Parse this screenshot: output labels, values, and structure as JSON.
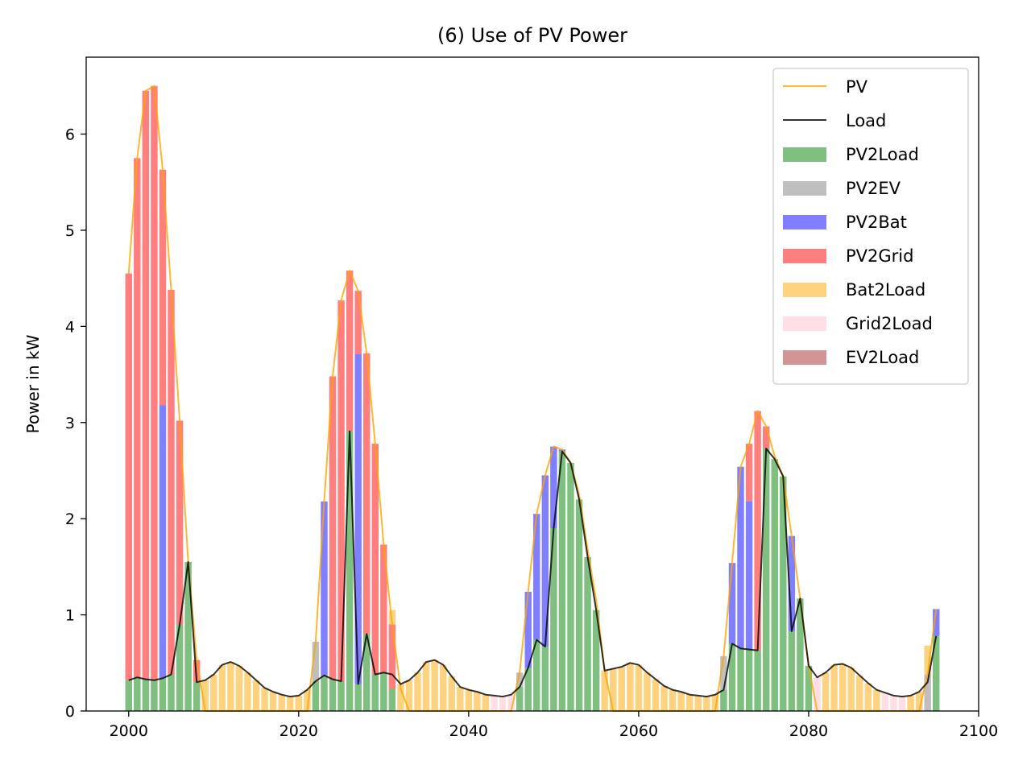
{
  "chart_data": {
    "type": "bar",
    "title": "(6) Use of PV Power",
    "xlabel": "",
    "ylabel": "Power in kW",
    "xlim": [
      1995,
      2100
    ],
    "ylim": [
      0,
      6.8
    ],
    "xticks": [
      2000,
      2020,
      2040,
      2060,
      2080,
      2100
    ],
    "yticks": [
      0,
      1,
      2,
      3,
      4,
      5,
      6
    ],
    "legend_position": "top-right",
    "x": [
      2000,
      2001,
      2002,
      2003,
      2004,
      2005,
      2006,
      2007,
      2008,
      2009,
      2010,
      2011,
      2012,
      2013,
      2014,
      2015,
      2016,
      2017,
      2018,
      2019,
      2020,
      2021,
      2022,
      2023,
      2024,
      2025,
      2026,
      2027,
      2028,
      2029,
      2030,
      2031,
      2032,
      2033,
      2034,
      2035,
      2036,
      2037,
      2038,
      2039,
      2040,
      2041,
      2042,
      2043,
      2044,
      2045,
      2046,
      2047,
      2048,
      2049,
      2050,
      2051,
      2052,
      2053,
      2054,
      2055,
      2056,
      2057,
      2058,
      2059,
      2060,
      2061,
      2062,
      2063,
      2064,
      2065,
      2066,
      2067,
      2068,
      2069,
      2070,
      2071,
      2072,
      2073,
      2074,
      2075,
      2076,
      2077,
      2078,
      2079,
      2080,
      2081,
      2082,
      2083,
      2084,
      2085,
      2086,
      2087,
      2088,
      2089,
      2090,
      2091,
      2092,
      2093,
      2094,
      2095
    ],
    "series": [
      {
        "name": "PV",
        "kind": "line",
        "color": "#FFA500",
        "values": [
          4.55,
          5.75,
          6.45,
          6.5,
          5.63,
          4.38,
          3.02,
          1.55,
          0.53,
          0,
          0,
          0,
          0,
          0,
          0,
          0,
          0,
          0,
          0,
          0,
          0,
          0,
          0.72,
          2.18,
          3.48,
          4.27,
          4.58,
          4.37,
          3.72,
          2.78,
          1.73,
          0.9,
          0.23,
          0,
          0,
          0,
          0,
          0,
          0,
          0,
          0,
          0,
          0,
          0,
          0,
          0,
          0.4,
          1.24,
          2.05,
          2.45,
          2.75,
          2.72,
          2.58,
          2.25,
          1.68,
          1.15,
          0.42,
          0,
          0,
          0,
          0,
          0,
          0,
          0,
          0,
          0,
          0,
          0,
          0,
          0,
          0.57,
          1.54,
          2.54,
          2.78,
          3.12,
          2.96,
          2.65,
          2.44,
          1.82,
          1.17,
          0.47,
          0,
          0,
          0,
          0,
          0,
          0,
          0,
          0,
          0,
          0,
          0,
          0,
          0,
          0.38,
          1.06
        ]
      },
      {
        "name": "Load",
        "kind": "line",
        "color": "#000000",
        "values": [
          0.32,
          0.35,
          0.33,
          0.32,
          0.34,
          0.38,
          0.9,
          1.55,
          0.3,
          0.32,
          0.38,
          0.48,
          0.51,
          0.47,
          0.4,
          0.32,
          0.24,
          0.2,
          0.17,
          0.15,
          0.16,
          0.22,
          0.31,
          0.37,
          0.33,
          0.31,
          2.91,
          0.28,
          0.8,
          0.38,
          0.4,
          0.38,
          0.28,
          0.32,
          0.4,
          0.51,
          0.53,
          0.48,
          0.36,
          0.25,
          0.22,
          0.2,
          0.17,
          0.16,
          0.15,
          0.17,
          0.25,
          0.45,
          0.74,
          0.67,
          1.9,
          2.7,
          2.58,
          2.2,
          1.6,
          1.05,
          0.42,
          0.44,
          0.46,
          0.5,
          0.48,
          0.4,
          0.33,
          0.26,
          0.22,
          0.2,
          0.17,
          0.16,
          0.15,
          0.17,
          0.22,
          0.7,
          0.65,
          0.64,
          0.63,
          2.73,
          2.62,
          2.44,
          0.83,
          1.17,
          0.47,
          0.35,
          0.4,
          0.48,
          0.49,
          0.45,
          0.37,
          0.29,
          0.22,
          0.19,
          0.16,
          0.15,
          0.16,
          0.2,
          0.3,
          0.78
        ]
      },
      {
        "name": "PV2Load",
        "kind": "bar",
        "color": "#008000",
        "alpha": 0.5,
        "values": [
          0.32,
          0.35,
          0.33,
          0.32,
          0.34,
          0.38,
          0.9,
          1.55,
          0.3,
          0,
          0,
          0,
          0,
          0,
          0,
          0,
          0,
          0,
          0,
          0,
          0,
          0,
          0.31,
          0.37,
          0.33,
          0.31,
          2.91,
          0.28,
          0.8,
          0.38,
          0.4,
          0.23,
          0,
          0,
          0,
          0,
          0,
          0,
          0,
          0,
          0,
          0,
          0,
          0,
          0,
          0,
          0.25,
          0.45,
          0.74,
          0.67,
          1.9,
          2.7,
          2.58,
          2.2,
          1.6,
          1.05,
          0,
          0,
          0,
          0,
          0,
          0,
          0,
          0,
          0,
          0,
          0,
          0,
          0,
          0,
          0.22,
          0.7,
          0.65,
          0.64,
          0.63,
          2.73,
          2.62,
          2.44,
          0.83,
          1.17,
          0.47,
          0,
          0,
          0,
          0,
          0,
          0,
          0,
          0,
          0,
          0,
          0,
          0,
          0,
          0,
          0.78
        ]
      },
      {
        "name": "PV2EV",
        "kind": "bar",
        "color": "#808080",
        "alpha": 0.5,
        "values": [
          0,
          0,
          0,
          0,
          0,
          0,
          0,
          0,
          0,
          0,
          0,
          0,
          0,
          0,
          0,
          0,
          0,
          0,
          0,
          0,
          0,
          0,
          0.41,
          0,
          0,
          0,
          0,
          0,
          0,
          0,
          0,
          0,
          0,
          0,
          0,
          0,
          0,
          0,
          0,
          0,
          0,
          0,
          0,
          0,
          0,
          0,
          0.15,
          0,
          0,
          0,
          0,
          0,
          0,
          0,
          0,
          0,
          0,
          0,
          0,
          0,
          0,
          0,
          0,
          0,
          0,
          0,
          0,
          0,
          0,
          0,
          0.35,
          0,
          0,
          0,
          0,
          0,
          0,
          0,
          0,
          0,
          0,
          0,
          0,
          0,
          0,
          0,
          0,
          0,
          0,
          0,
          0,
          0,
          0,
          0,
          0.38,
          0
        ]
      },
      {
        "name": "PV2Bat",
        "kind": "bar",
        "color": "#0000FF",
        "alpha": 0.5,
        "values": [
          0,
          0,
          0,
          0,
          2.84,
          0,
          0,
          0,
          0,
          0,
          0,
          0,
          0,
          0,
          0,
          0,
          0,
          0,
          0,
          0,
          0,
          0,
          0,
          1.81,
          0,
          0,
          0,
          3.43,
          0,
          0,
          0,
          0,
          0,
          0,
          0,
          0,
          0,
          0,
          0,
          0,
          0,
          0,
          0,
          0,
          0,
          0,
          0,
          0.79,
          1.31,
          1.78,
          0.85,
          0.02,
          0,
          0,
          0,
          0,
          0,
          0,
          0,
          0,
          0,
          0,
          0,
          0,
          0,
          0,
          0,
          0,
          0,
          0,
          0,
          0.84,
          1.89,
          1.54,
          0,
          0,
          0,
          0,
          0.99,
          0,
          0,
          0,
          0,
          0,
          0,
          0,
          0,
          0,
          0,
          0,
          0,
          0,
          0,
          0,
          0,
          0.28
        ]
      },
      {
        "name": "PV2Grid",
        "kind": "bar",
        "color": "#FF0000",
        "alpha": 0.5,
        "values": [
          4.23,
          5.4,
          6.12,
          6.18,
          2.45,
          4.0,
          2.12,
          0,
          0.23,
          0,
          0,
          0,
          0,
          0,
          0,
          0,
          0,
          0,
          0,
          0,
          0,
          0,
          0,
          0,
          3.15,
          3.96,
          1.67,
          0.66,
          2.92,
          2.4,
          1.33,
          0.67,
          0,
          0,
          0,
          0,
          0,
          0,
          0,
          0,
          0,
          0,
          0,
          0,
          0,
          0,
          0,
          0,
          0,
          0,
          0,
          0,
          0,
          0,
          0,
          0,
          0,
          0,
          0,
          0,
          0,
          0,
          0,
          0,
          0,
          0,
          0,
          0,
          0,
          0,
          0,
          0,
          0,
          0.6,
          2.49,
          0.23,
          0,
          0,
          0,
          0,
          0,
          0,
          0,
          0,
          0,
          0,
          0,
          0,
          0,
          0,
          0,
          0,
          0,
          0,
          0,
          0
        ]
      },
      {
        "name": "Bat2Load",
        "kind": "bar",
        "color": "#FFA500",
        "alpha": 0.5,
        "values": [
          0,
          0,
          0,
          0,
          0,
          0,
          0,
          0,
          0,
          0.32,
          0.38,
          0.48,
          0.51,
          0.47,
          0.4,
          0.32,
          0.24,
          0.2,
          0.17,
          0.15,
          0.16,
          0.22,
          0,
          0,
          0,
          0,
          0,
          0,
          0,
          0,
          0,
          0.15,
          0.28,
          0.32,
          0.4,
          0.51,
          0.53,
          0.48,
          0.36,
          0.25,
          0.22,
          0.2,
          0.17,
          0,
          0,
          0,
          0,
          0,
          0,
          0,
          0,
          0,
          0,
          0,
          0,
          0,
          0.42,
          0.44,
          0.46,
          0.5,
          0.48,
          0.4,
          0.33,
          0.26,
          0.22,
          0.2,
          0.17,
          0.16,
          0.15,
          0.17,
          0,
          0,
          0,
          0,
          0,
          0,
          0,
          0,
          0,
          0,
          0,
          0,
          0.4,
          0.48,
          0.49,
          0.45,
          0.37,
          0.29,
          0.22,
          0,
          0,
          0,
          0.16,
          0.2,
          0.3,
          0
        ]
      },
      {
        "name": "Grid2Load",
        "kind": "bar",
        "color": "#FFC0CB",
        "alpha": 0.5,
        "values": [
          0,
          0,
          0,
          0,
          0,
          0,
          0,
          0,
          0,
          0,
          0,
          0,
          0,
          0,
          0,
          0,
          0,
          0,
          0,
          0,
          0,
          0,
          0,
          0,
          0,
          0,
          0,
          0,
          0,
          0,
          0,
          0,
          0,
          0,
          0,
          0,
          0,
          0,
          0,
          0,
          0,
          0,
          0,
          0.16,
          0.15,
          0.17,
          0,
          0,
          0,
          0,
          0,
          0,
          0,
          0,
          0,
          0,
          0,
          0,
          0,
          0,
          0,
          0,
          0,
          0,
          0,
          0,
          0,
          0,
          0,
          0,
          0,
          0,
          0,
          0,
          0,
          0,
          0,
          0,
          0,
          0,
          0,
          0.35,
          0,
          0,
          0,
          0,
          0,
          0,
          0,
          0.19,
          0.16,
          0.15,
          0,
          0,
          0,
          0
        ]
      },
      {
        "name": "EV2Load",
        "kind": "bar",
        "color": "#A52A2A",
        "alpha": 0.5,
        "values": [
          0,
          0,
          0,
          0,
          0,
          0,
          0,
          0,
          0,
          0,
          0,
          0,
          0,
          0,
          0,
          0,
          0,
          0,
          0,
          0,
          0,
          0,
          0,
          0,
          0,
          0,
          0,
          0,
          0,
          0,
          0,
          0,
          0,
          0,
          0,
          0,
          0,
          0,
          0,
          0,
          0,
          0,
          0,
          0,
          0,
          0,
          0,
          0,
          0,
          0,
          0,
          0,
          0,
          0,
          0,
          0,
          0,
          0,
          0,
          0,
          0,
          0,
          0,
          0,
          0,
          0,
          0,
          0,
          0,
          0,
          0,
          0,
          0,
          0,
          0,
          0,
          0,
          0,
          0,
          0,
          0,
          0,
          0,
          0,
          0,
          0,
          0,
          0,
          0,
          0,
          0,
          0,
          0,
          0,
          0,
          0
        ]
      }
    ]
  }
}
